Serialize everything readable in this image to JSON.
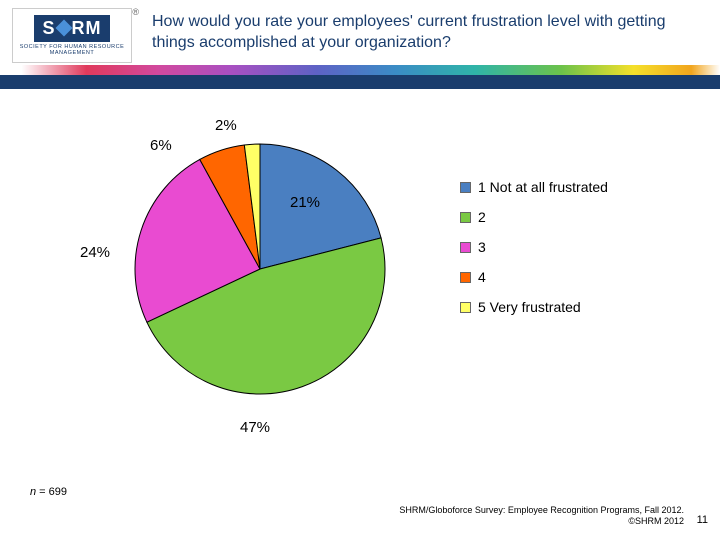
{
  "header": {
    "logo_text_left": "S",
    "logo_text_right": "RM",
    "logo_subtitle": "SOCIETY FOR HUMAN\nRESOURCE MANAGEMENT",
    "registered": "®",
    "title": "How would you rate your employees' current frustration level with getting things accomplished at your organization?"
  },
  "chart": {
    "type": "pie",
    "slices": [
      {
        "label": "1 Not at all frustrated",
        "value": 21,
        "display": "21%",
        "color": "#4a7fc1"
      },
      {
        "label": "2",
        "value": 47,
        "display": "47%",
        "color": "#7ac943"
      },
      {
        "label": "3",
        "value": 24,
        "display": "24%",
        "color": "#e94bd1"
      },
      {
        "label": "4",
        "value": 6,
        "display": "6%",
        "color": "#ff6600"
      },
      {
        "label": "5 Very frustrated",
        "value": 2,
        "display": "2%",
        "color": "#ffff66"
      }
    ],
    "label_fontsize": 15,
    "legend_fontsize": 14,
    "background_color": "#ffffff",
    "slice_border_color": "#000000",
    "slice_border_width": 1,
    "start_angle_deg": -90
  },
  "footer": {
    "n_label": "n",
    "n_text": " = 699",
    "source_line1": "SHRM/Globoforce Survey: Employee Recognition Programs, Fall 2012.",
    "source_line2": "©SHRM 2012",
    "page_number": "11"
  }
}
